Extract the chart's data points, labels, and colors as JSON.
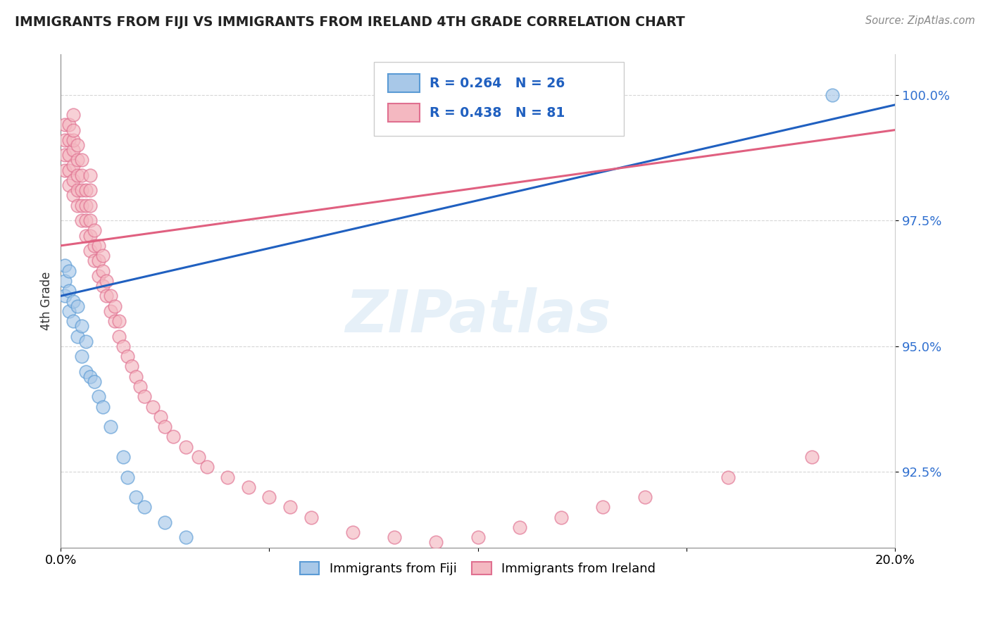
{
  "title": "IMMIGRANTS FROM FIJI VS IMMIGRANTS FROM IRELAND 4TH GRADE CORRELATION CHART",
  "source": "Source: ZipAtlas.com",
  "ylabel": "4th Grade",
  "xlim": [
    0.0,
    0.2
  ],
  "ylim": [
    0.91,
    1.008
  ],
  "yticks": [
    0.925,
    0.95,
    0.975,
    1.0
  ],
  "ytick_labels": [
    "92.5%",
    "95.0%",
    "97.5%",
    "100.0%"
  ],
  "xticks": [
    0.0,
    0.05,
    0.1,
    0.15,
    0.2
  ],
  "xtick_labels": [
    "0.0%",
    "",
    "",
    "",
    "20.0%"
  ],
  "fiji_color": "#a8c8e8",
  "fiji_edge_color": "#5b9bd5",
  "ireland_color": "#f4b8c1",
  "ireland_edge_color": "#e07090",
  "fiji_line_color": "#2060c0",
  "ireland_line_color": "#e06080",
  "legend_fiji_label": "Immigrants from Fiji",
  "legend_ireland_label": "Immigrants from Ireland",
  "fiji_R": "0.264",
  "fiji_N": "26",
  "ireland_R": "0.438",
  "ireland_N": "81",
  "fiji_line_x": [
    0.0,
    0.2
  ],
  "fiji_line_y": [
    0.96,
    0.998
  ],
  "ireland_line_x": [
    0.0,
    0.2
  ],
  "ireland_line_y": [
    0.97,
    0.993
  ],
  "fiji_scatter_x": [
    0.001,
    0.001,
    0.001,
    0.002,
    0.002,
    0.002,
    0.003,
    0.003,
    0.004,
    0.004,
    0.005,
    0.005,
    0.006,
    0.006,
    0.007,
    0.008,
    0.009,
    0.01,
    0.012,
    0.015,
    0.016,
    0.018,
    0.02,
    0.025,
    0.03,
    0.185
  ],
  "fiji_scatter_y": [
    0.96,
    0.963,
    0.966,
    0.957,
    0.961,
    0.965,
    0.955,
    0.959,
    0.952,
    0.958,
    0.948,
    0.954,
    0.945,
    0.951,
    0.944,
    0.943,
    0.94,
    0.938,
    0.934,
    0.928,
    0.924,
    0.92,
    0.918,
    0.915,
    0.912,
    1.0
  ],
  "ireland_scatter_x": [
    0.001,
    0.001,
    0.001,
    0.001,
    0.002,
    0.002,
    0.002,
    0.002,
    0.002,
    0.003,
    0.003,
    0.003,
    0.003,
    0.003,
    0.003,
    0.003,
    0.004,
    0.004,
    0.004,
    0.004,
    0.004,
    0.005,
    0.005,
    0.005,
    0.005,
    0.005,
    0.006,
    0.006,
    0.006,
    0.006,
    0.007,
    0.007,
    0.007,
    0.007,
    0.007,
    0.007,
    0.008,
    0.008,
    0.008,
    0.009,
    0.009,
    0.009,
    0.01,
    0.01,
    0.01,
    0.011,
    0.011,
    0.012,
    0.012,
    0.013,
    0.013,
    0.014,
    0.014,
    0.015,
    0.016,
    0.017,
    0.018,
    0.019,
    0.02,
    0.022,
    0.024,
    0.025,
    0.027,
    0.03,
    0.033,
    0.035,
    0.04,
    0.045,
    0.05,
    0.055,
    0.06,
    0.07,
    0.08,
    0.09,
    0.1,
    0.11,
    0.12,
    0.13,
    0.14,
    0.16,
    0.18
  ],
  "ireland_scatter_y": [
    0.985,
    0.988,
    0.991,
    0.994,
    0.982,
    0.985,
    0.988,
    0.991,
    0.994,
    0.98,
    0.983,
    0.986,
    0.989,
    0.991,
    0.993,
    0.996,
    0.978,
    0.981,
    0.984,
    0.987,
    0.99,
    0.975,
    0.978,
    0.981,
    0.984,
    0.987,
    0.972,
    0.975,
    0.978,
    0.981,
    0.969,
    0.972,
    0.975,
    0.978,
    0.981,
    0.984,
    0.967,
    0.97,
    0.973,
    0.964,
    0.967,
    0.97,
    0.962,
    0.965,
    0.968,
    0.96,
    0.963,
    0.957,
    0.96,
    0.955,
    0.958,
    0.952,
    0.955,
    0.95,
    0.948,
    0.946,
    0.944,
    0.942,
    0.94,
    0.938,
    0.936,
    0.934,
    0.932,
    0.93,
    0.928,
    0.926,
    0.924,
    0.922,
    0.92,
    0.918,
    0.916,
    0.913,
    0.912,
    0.911,
    0.912,
    0.914,
    0.916,
    0.918,
    0.92,
    0.924,
    0.928
  ],
  "watermark_text": "ZIPatlas",
  "background_color": "#ffffff",
  "grid_color": "#cccccc"
}
